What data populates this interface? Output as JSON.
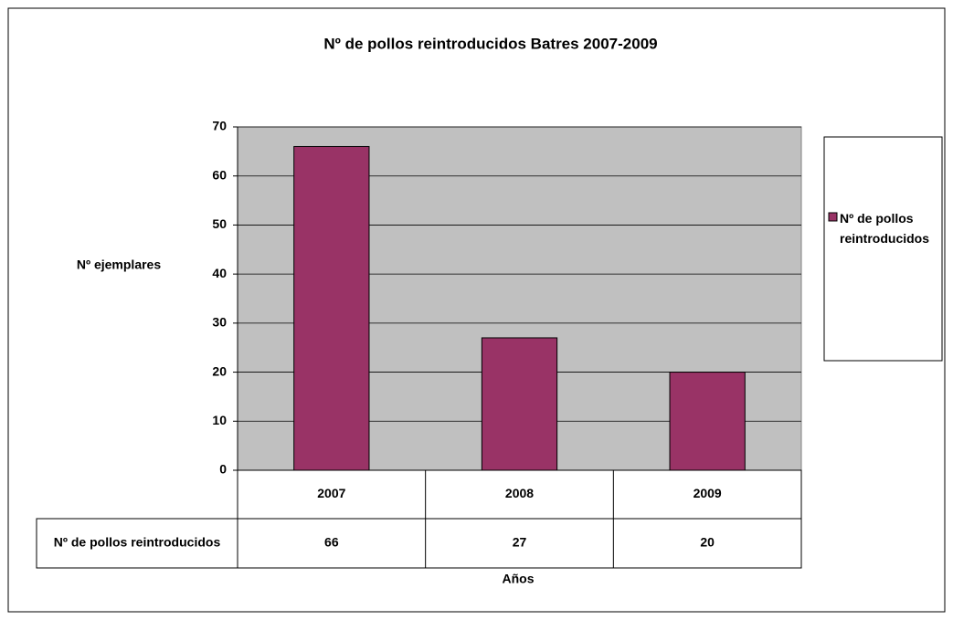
{
  "chart_data": {
    "type": "bar",
    "title": "Nº de pollos reintroducidos  Batres 2007-2009",
    "y_label": "Nº ejemplares",
    "x_label": "Años",
    "categories": [
      "2007",
      "2008",
      "2009"
    ],
    "series": [
      {
        "name": "Nº de pollos reintroducidos",
        "color": "#993366",
        "values": [
          66,
          27,
          20
        ]
      }
    ],
    "ylim": [
      0,
      70
    ],
    "yticks": [
      0,
      10,
      20,
      30,
      40,
      50,
      60,
      70
    ],
    "grid": true,
    "legend": "right",
    "data_table": true
  }
}
